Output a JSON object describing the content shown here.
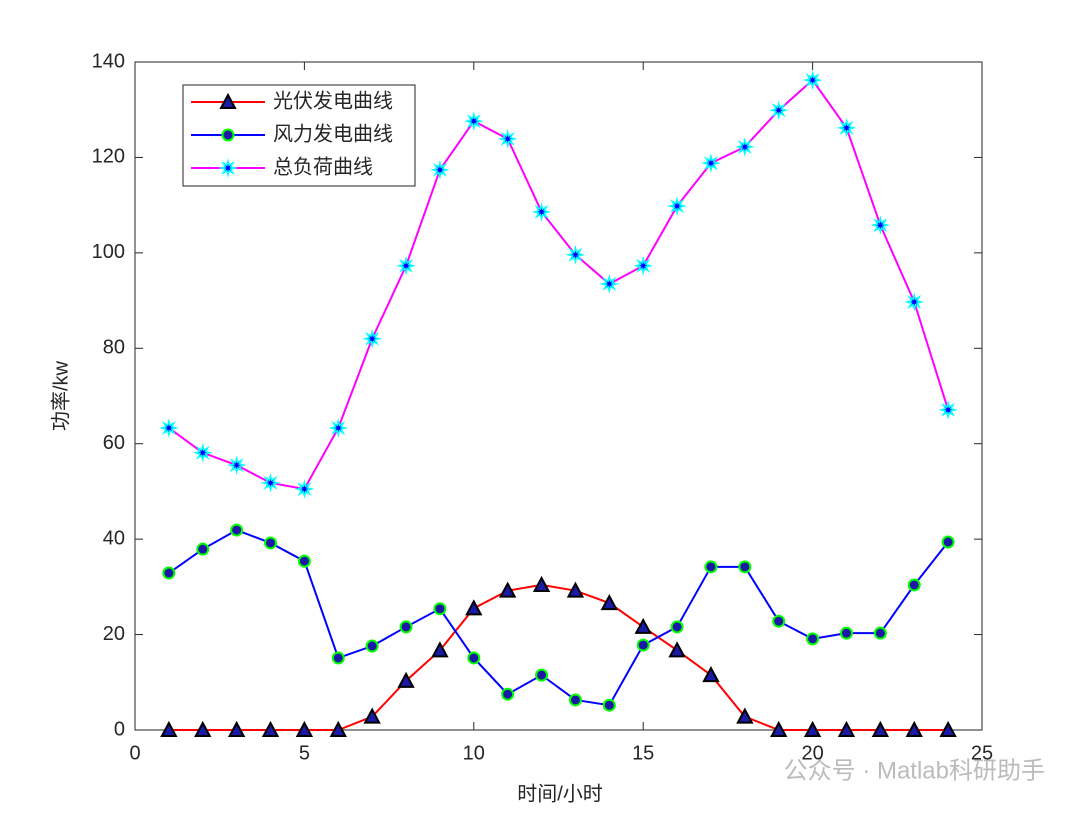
{
  "chart_data": {
    "type": "line",
    "x": [
      1,
      2,
      3,
      4,
      5,
      6,
      7,
      8,
      9,
      10,
      11,
      12,
      13,
      14,
      15,
      16,
      17,
      18,
      19,
      20,
      21,
      22,
      23,
      24
    ],
    "series": [
      {
        "name": "光伏发电曲线",
        "color": "#ff0000",
        "marker": "triangle",
        "marker_fill": "#1a1aa6",
        "marker_edge": "#000000",
        "values": [
          0,
          0,
          0,
          0,
          0,
          0,
          2.8,
          10.3,
          16.7,
          25.5,
          29.2,
          30.4,
          29.2,
          26.6,
          21.6,
          16.7,
          11.5,
          2.8,
          0,
          0,
          0,
          0,
          0,
          0
        ]
      },
      {
        "name": "风力发电曲线",
        "color": "#0000ff",
        "marker": "circle",
        "marker_fill": "#1a1aa6",
        "marker_edge": "#00ff00",
        "values": [
          32.9,
          37.9,
          41.9,
          39.2,
          35.4,
          15.1,
          17.6,
          21.6,
          25.4,
          15.1,
          7.5,
          11.5,
          6.3,
          5.2,
          17.8,
          21.6,
          34.2,
          34.2,
          22.8,
          19.1,
          20.3,
          20.3,
          30.4,
          39.4
        ]
      },
      {
        "name": "总负荷曲线",
        "color": "#ff00ff",
        "marker": "star",
        "marker_fill": "#0000ff",
        "marker_edge": "#00ffff",
        "values": [
          63.3,
          58.1,
          55.5,
          51.8,
          50.5,
          63.3,
          82.0,
          97.3,
          117.4,
          127.6,
          123.9,
          108.6,
          99.6,
          93.5,
          97.3,
          109.8,
          118.8,
          122.2,
          129.9,
          136.2,
          126.2,
          105.8,
          89.7,
          67.1
        ]
      }
    ],
    "xlabel": "时间/小时",
    "ylabel": "功率/kw",
    "xlim": [
      0,
      25
    ],
    "xticks": [
      0,
      5,
      10,
      15,
      20,
      25
    ],
    "ylim": [
      0,
      140
    ],
    "yticks": [
      0,
      20,
      40,
      60,
      80,
      100,
      120,
      140
    ],
    "grid": false,
    "legend": "upper left",
    "watermark": "公众号 · Matlab科研助手"
  }
}
